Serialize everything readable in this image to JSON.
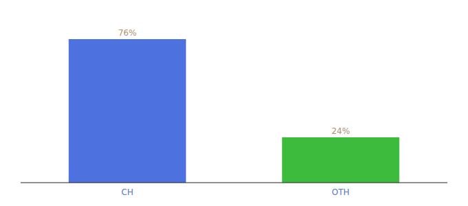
{
  "chart_data": {
    "type": "bar",
    "categories": [
      "CH",
      "OTH"
    ],
    "values": [
      76,
      24
    ],
    "value_labels": [
      "76%",
      "24%"
    ],
    "colors": [
      "#4d72e0",
      "#3dbb3d"
    ],
    "ylim": [
      0,
      88
    ],
    "data_labels": true,
    "tick_labels": "x"
  }
}
